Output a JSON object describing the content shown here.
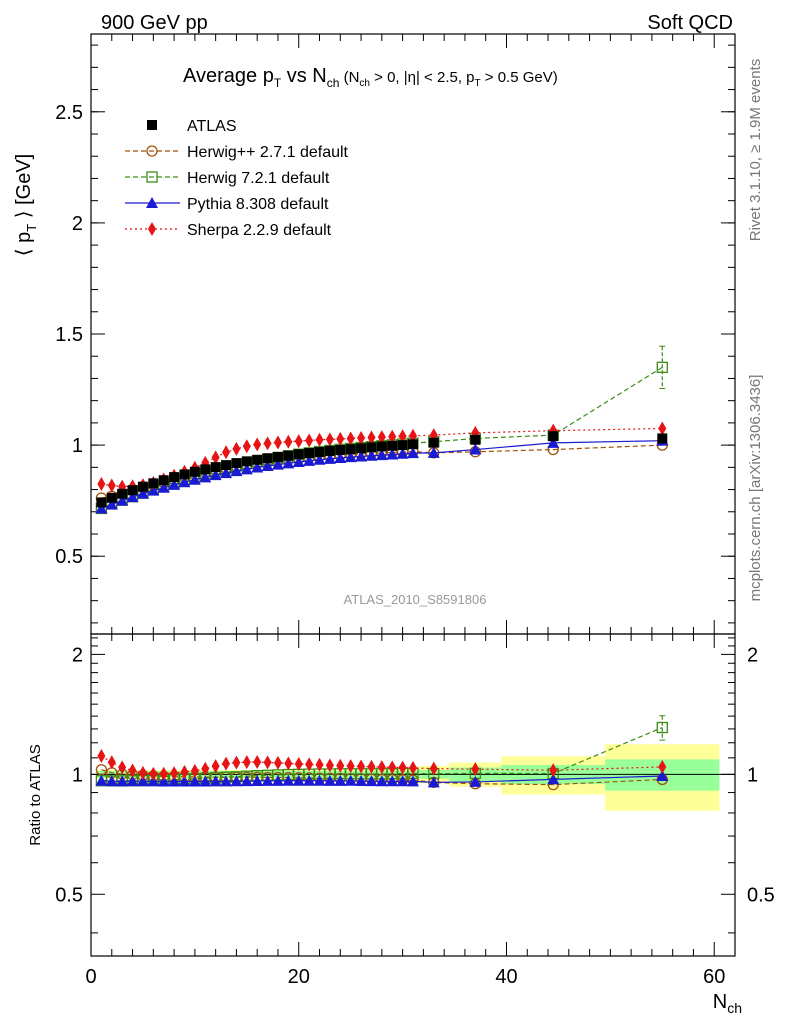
{
  "header": {
    "left": "900 GeV pp",
    "right": "Soft QCD"
  },
  "side_labels": {
    "rivet": "Rivet 3.1.10, ≥ 1.9M events",
    "mcplots": "mcplots.cern.ch [arXiv:1306.3436]"
  },
  "chart_data": {
    "type": "scatter",
    "title": "Average p_T vs N_ch (N_ch > 0, |η| < 2.5, p_T > 0.5 GeV)",
    "analysis_label": "ATLAS_2010_S8591806",
    "xlabel": "N_ch",
    "ylabel": "⟨ p_T ⟩ [GeV]",
    "ratio_ylabel": "Ratio to ATLAS",
    "xlim": [
      0,
      62
    ],
    "ylim": [
      0.15,
      2.85
    ],
    "ratio_ylim": [
      0.35,
      2.25
    ],
    "x_ticks": [
      0,
      20,
      40,
      60
    ],
    "y_ticks": [
      0.5,
      1,
      1.5,
      2,
      2.5
    ],
    "ratio_y_ticks": [
      0.5,
      1,
      2
    ],
    "legend_position": "top-left",
    "x": [
      1,
      2,
      3,
      4,
      5,
      6,
      7,
      8,
      9,
      10,
      11,
      12,
      13,
      14,
      15,
      16,
      17,
      18,
      19,
      20,
      21,
      22,
      23,
      24,
      25,
      26,
      27,
      28,
      29,
      30,
      31,
      33,
      37,
      44.5,
      55
    ],
    "bin_edges": [
      0.5,
      1.5,
      2.5,
      3.5,
      4.5,
      5.5,
      6.5,
      7.5,
      8.5,
      9.5,
      10.5,
      11.5,
      12.5,
      13.5,
      14.5,
      15.5,
      16.5,
      17.5,
      18.5,
      19.5,
      20.5,
      21.5,
      22.5,
      23.5,
      24.5,
      25.5,
      26.5,
      27.5,
      28.5,
      29.5,
      30.5,
      31.5,
      34.5,
      39.5,
      49.5,
      60.5
    ],
    "band_inner": [
      0.02,
      0.02,
      0.02,
      0.02,
      0.02,
      0.02,
      0.02,
      0.02,
      0.02,
      0.02,
      0.02,
      0.02,
      0.02,
      0.02,
      0.02,
      0.02,
      0.02,
      0.02,
      0.02,
      0.02,
      0.02,
      0.02,
      0.02,
      0.02,
      0.02,
      0.02,
      0.02,
      0.02,
      0.02,
      0.02,
      0.02,
      0.025,
      0.04,
      0.055,
      0.09
    ],
    "band_outer": [
      0.025,
      0.025,
      0.025,
      0.025,
      0.025,
      0.025,
      0.025,
      0.025,
      0.025,
      0.025,
      0.025,
      0.025,
      0.025,
      0.025,
      0.025,
      0.025,
      0.025,
      0.025,
      0.025,
      0.025,
      0.025,
      0.025,
      0.025,
      0.025,
      0.025,
      0.025,
      0.025,
      0.03,
      0.03,
      0.03,
      0.035,
      0.05,
      0.07,
      0.11,
      0.19
    ],
    "series": [
      {
        "name": "ATLAS",
        "color": "#000000",
        "marker": "square",
        "line": "none",
        "values": [
          0.742,
          0.763,
          0.781,
          0.797,
          0.813,
          0.828,
          0.842,
          0.856,
          0.868,
          0.88,
          0.891,
          0.901,
          0.91,
          0.919,
          0.927,
          0.934,
          0.941,
          0.947,
          0.953,
          0.959,
          0.964,
          0.969,
          0.974,
          0.978,
          0.982,
          0.986,
          0.99,
          0.994,
          0.997,
          1.0,
          1.004,
          1.011,
          1.024,
          1.04,
          1.03
        ]
      },
      {
        "name": "Herwig++ 2.7.1 default",
        "color": "#a0520a",
        "marker": "open-circle",
        "line": "dashed",
        "values": [
          0.762,
          0.77,
          0.782,
          0.795,
          0.808,
          0.82,
          0.832,
          0.844,
          0.856,
          0.867,
          0.877,
          0.887,
          0.896,
          0.904,
          0.911,
          0.918,
          0.924,
          0.93,
          0.935,
          0.94,
          0.944,
          0.948,
          0.952,
          0.955,
          0.958,
          0.961,
          0.963,
          0.965,
          0.967,
          0.969,
          0.971,
          0.965,
          0.97,
          0.98,
          1.0
        ]
      },
      {
        "name": "Herwig 7.2.1 default",
        "color": "#3c8c14",
        "marker": "open-square",
        "line": "dashed",
        "values": [
          0.715,
          0.735,
          0.752,
          0.768,
          0.784,
          0.8,
          0.815,
          0.83,
          0.845,
          0.858,
          0.871,
          0.883,
          0.895,
          0.906,
          0.917,
          0.927,
          0.936,
          0.944,
          0.952,
          0.959,
          0.965,
          0.971,
          0.976,
          0.981,
          0.985,
          0.989,
          0.993,
          0.997,
          1.001,
          1.005,
          1.009,
          1.015,
          1.03,
          1.045,
          1.35
        ],
        "errors": [
          0,
          0,
          0,
          0,
          0,
          0,
          0,
          0,
          0,
          0,
          0,
          0,
          0,
          0,
          0,
          0,
          0,
          0,
          0,
          0,
          0,
          0,
          0,
          0,
          0,
          0,
          0,
          0,
          0,
          0,
          0,
          0,
          0,
          0,
          0.095
        ]
      },
      {
        "name": "Pythia 8.308 default",
        "color": "#1a1ad2",
        "marker": "triangle",
        "line": "solid",
        "values": [
          0.715,
          0.733,
          0.75,
          0.766,
          0.781,
          0.795,
          0.808,
          0.821,
          0.833,
          0.844,
          0.855,
          0.865,
          0.874,
          0.883,
          0.891,
          0.899,
          0.906,
          0.912,
          0.918,
          0.924,
          0.929,
          0.934,
          0.938,
          0.942,
          0.946,
          0.949,
          0.952,
          0.955,
          0.958,
          0.961,
          0.964,
          0.965,
          0.98,
          1.01,
          1.02
        ]
      },
      {
        "name": "Sherpa 2.2.9 default",
        "color": "#e61414",
        "marker": "diamond",
        "line": "dotted",
        "values": [
          0.825,
          0.818,
          0.813,
          0.815,
          0.82,
          0.83,
          0.845,
          0.862,
          0.88,
          0.898,
          0.92,
          0.945,
          0.968,
          0.983,
          0.995,
          1.003,
          1.008,
          1.012,
          1.015,
          1.018,
          1.021,
          1.024,
          1.026,
          1.028,
          1.03,
          1.032,
          1.034,
          1.036,
          1.038,
          1.04,
          1.042,
          1.045,
          1.055,
          1.065,
          1.075
        ]
      }
    ]
  }
}
